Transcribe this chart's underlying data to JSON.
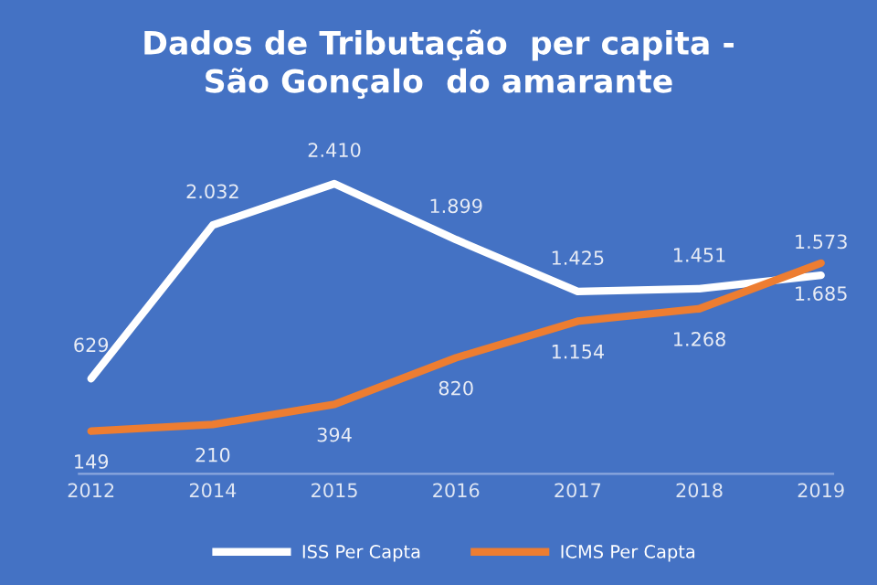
{
  "chart_data": {
    "type": "line",
    "title": "Dados de Tributação  per capita -\nSão Gonçalo  do amarante",
    "categories": [
      "2012",
      "2014",
      "2015",
      "2016",
      "2017",
      "2018",
      "2019"
    ],
    "series": [
      {
        "name": "ISS Per Capta",
        "color": "#ffffff",
        "values": [
          629,
          2032,
          2410,
          1899,
          1425,
          1451,
          1573
        ],
        "value_labels": [
          "629",
          "2.032",
          "2.410",
          "1.899",
          "1.425",
          "1.451",
          "1.573"
        ]
      },
      {
        "name": "ICMS Per Capta",
        "color": "#ed7d31",
        "values": [
          149,
          210,
          394,
          820,
          1154,
          1268,
          1685
        ],
        "value_labels": [
          "149",
          "210",
          "394",
          "820",
          "1.154",
          "1.268",
          "1.685"
        ]
      }
    ],
    "grid": false,
    "legend": "bottom",
    "marker": "none",
    "line_style": "solid",
    "tick_labels": "x"
  }
}
